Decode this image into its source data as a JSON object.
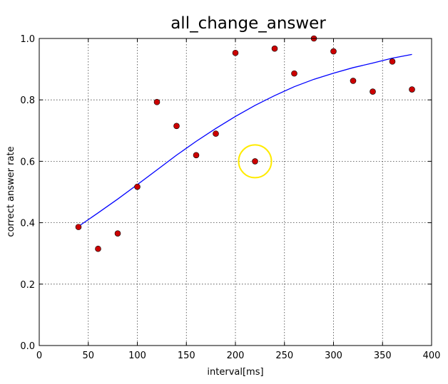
{
  "chart_data": {
    "type": "scatter",
    "title": "all_change_answer",
    "xlabel": "interval[ms]",
    "ylabel": "correct answer rate",
    "xlim": [
      0,
      400
    ],
    "ylim": [
      0.0,
      1.0
    ],
    "xticks": [
      0,
      50,
      100,
      150,
      200,
      250,
      300,
      350,
      400
    ],
    "xtick_labels": [
      "0",
      "50",
      "100",
      "150",
      "200",
      "250",
      "300",
      "350",
      "400"
    ],
    "yticks": [
      0.0,
      0.2,
      0.4,
      0.6,
      0.8,
      1.0
    ],
    "ytick_labels": [
      "0.0",
      "0.2",
      "0.4",
      "0.6",
      "0.8",
      "1.0"
    ],
    "grid": true,
    "series": [
      {
        "kind": "scatter",
        "color": "#cc0000",
        "x": [
          40,
          60,
          80,
          100,
          120,
          140,
          160,
          180,
          200,
          220,
          240,
          260,
          280,
          300,
          320,
          340,
          360,
          380
        ],
        "y": [
          0.386,
          0.315,
          0.365,
          0.517,
          0.793,
          0.715,
          0.62,
          0.69,
          0.953,
          0.6,
          0.967,
          0.886,
          1.0,
          0.958,
          0.862,
          0.827,
          0.925,
          0.834
        ]
      },
      {
        "kind": "line",
        "color": "#0000ff",
        "x": [
          40,
          60,
          80,
          100,
          120,
          140,
          160,
          180,
          200,
          220,
          240,
          260,
          280,
          300,
          320,
          340,
          360,
          380
        ],
        "y": [
          0.388,
          0.432,
          0.477,
          0.524,
          0.572,
          0.62,
          0.665,
          0.707,
          0.746,
          0.782,
          0.814,
          0.843,
          0.867,
          0.887,
          0.905,
          0.92,
          0.936,
          0.948
        ]
      }
    ],
    "annotations": [
      {
        "kind": "circle",
        "color": "#ffeb00",
        "x": 220,
        "y": 0.6
      }
    ]
  }
}
